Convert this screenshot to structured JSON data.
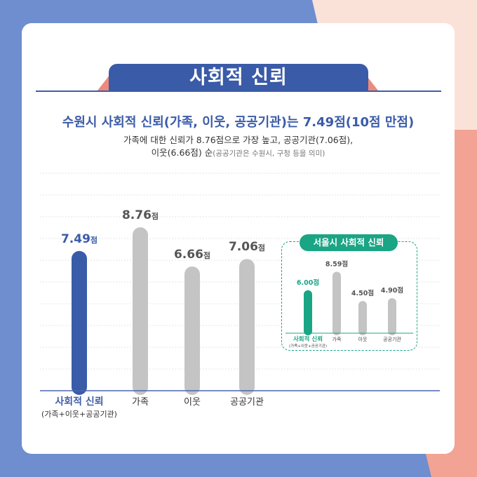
{
  "banner": {
    "title": "사회적 신뢰"
  },
  "headline": "수원시 사회적 신뢰(가족, 이웃, 공공기관)는 7.49점(10점 만점)",
  "subtitle": {
    "line1": "가족에 대한 신뢰가 8.76점으로 가장 높고, 공공기관(7.06점),",
    "line2": "이웃(6.66점) 순",
    "note": "(공공기관은 수원시, 구청 등을 의미)"
  },
  "colors": {
    "primary": "#3a5ba8",
    "gray": "#c4c4c4",
    "green": "#1aa584",
    "highlight_label": "#3f5ea8"
  },
  "chart_data": [
    {
      "type": "bar",
      "title": "",
      "categories": [
        "사회적 신뢰",
        "가족",
        "이웃",
        "공공기관"
      ],
      "category_sublabels": [
        "(가족+이웃+공공기관)",
        "",
        "",
        ""
      ],
      "values": [
        7.49,
        8.76,
        6.66,
        7.06
      ],
      "value_labels": [
        "7.49점",
        "8.76점",
        "6.66점",
        "7.06점"
      ],
      "highlight_index": 0,
      "ylim": [
        0,
        10
      ],
      "grid": true
    },
    {
      "type": "bar",
      "title": "서울시 사회적 신뢰",
      "categories": [
        "사회적 신뢰",
        "가족",
        "이웃",
        "공공기관"
      ],
      "category_sublabels": [
        "(가족+이웃+공공기관)",
        "",
        "",
        ""
      ],
      "values": [
        6.0,
        8.59,
        4.5,
        4.9
      ],
      "value_labels": [
        "6.00점",
        "8.59점",
        "4.50점",
        "4.90점"
      ],
      "highlight_index": 0,
      "ylim": [
        0,
        10
      ],
      "grid": false
    }
  ]
}
